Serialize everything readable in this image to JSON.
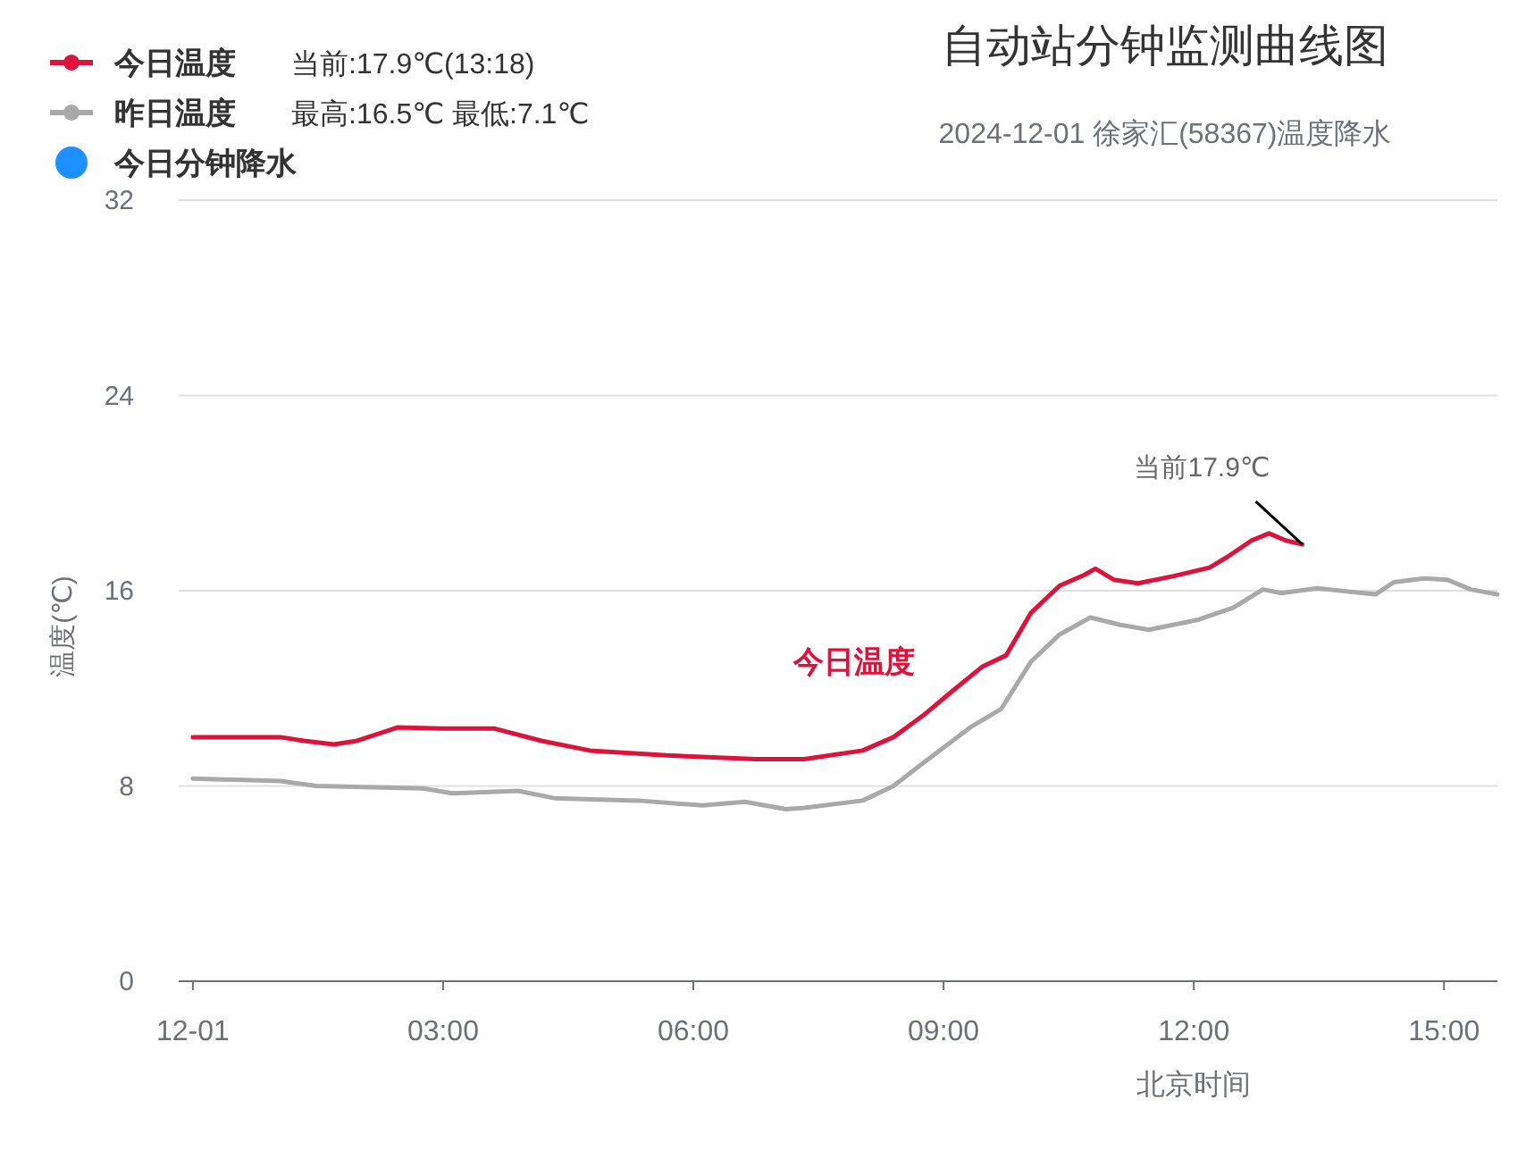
{
  "chart_data": {
    "type": "line",
    "title": "自动站分钟监测曲线图",
    "subtitle": "2024-12-01 徐家汇(58367)温度降水",
    "ylabel": "温度(℃)",
    "xlabel": "北京时间",
    "xlim": [
      -0.17,
      15.64
    ],
    "xticks": [
      {
        "value": 0,
        "label": "12-01"
      },
      {
        "value": 3,
        "label": "03:00"
      },
      {
        "value": 6,
        "label": "06:00"
      },
      {
        "value": 9,
        "label": "09:00"
      },
      {
        "value": 12,
        "label": "12:00"
      },
      {
        "value": 15,
        "label": "15:00"
      }
    ],
    "ylim": [
      0,
      32
    ],
    "yticks": [
      0,
      8,
      16,
      24,
      32
    ],
    "grid": "y",
    "legend": "top left",
    "series": [
      {
        "name": "今日温度",
        "color": "#dc143c",
        "x": [
          0,
          1.05,
          1.33,
          1.69,
          1.97,
          2.46,
          2.97,
          3.62,
          4.18,
          4.76,
          5.68,
          6.75,
          7.33,
          8.03,
          8.4,
          8.76,
          9.11,
          9.47,
          9.75,
          10.05,
          10.39,
          10.69,
          10.82,
          11.04,
          11.33,
          11.76,
          12.19,
          12.41,
          12.69,
          12.9,
          13.11,
          13.3
        ],
        "values": [
          10.0,
          10.0,
          9.85,
          9.7,
          9.85,
          10.4,
          10.35,
          10.35,
          9.85,
          9.45,
          9.25,
          9.1,
          9.1,
          9.45,
          10.0,
          10.9,
          11.9,
          12.9,
          13.35,
          15.1,
          16.2,
          16.65,
          16.9,
          16.45,
          16.3,
          16.6,
          16.95,
          17.4,
          18.05,
          18.35,
          18.05,
          17.9
        ]
      },
      {
        "name": "昨日温度",
        "color": "#a9a9a9",
        "x": [
          0,
          1.05,
          1.48,
          2.76,
          3.11,
          3.9,
          4.33,
          5.34,
          6.11,
          6.62,
          7.11,
          7.33,
          8.03,
          8.4,
          8.76,
          9.32,
          9.69,
          10.05,
          10.39,
          10.76,
          11.12,
          11.46,
          12.04,
          12.47,
          12.83,
          13.05,
          13.48,
          14.18,
          14.4,
          14.76,
          15.04,
          15.32,
          15.64
        ],
        "values": [
          8.3,
          8.2,
          8.0,
          7.9,
          7.7,
          7.8,
          7.5,
          7.4,
          7.2,
          7.35,
          7.05,
          7.1,
          7.4,
          8.0,
          8.95,
          10.4,
          11.15,
          13.1,
          14.2,
          14.9,
          14.6,
          14.4,
          14.8,
          15.3,
          16.05,
          15.9,
          16.1,
          15.85,
          16.35,
          16.5,
          16.45,
          16.05,
          15.85
        ]
      },
      {
        "name": "今日分钟降水",
        "color": "#1e90ff",
        "type": "scatter"
      }
    ],
    "annotations": [
      {
        "text": "当前17.9℃",
        "x": 13.3,
        "y": 17.9
      },
      "今日温度",
      "当前:17.9℃(13:18)",
      "最高:16.5℃ 最低:7.1℃"
    ]
  }
}
